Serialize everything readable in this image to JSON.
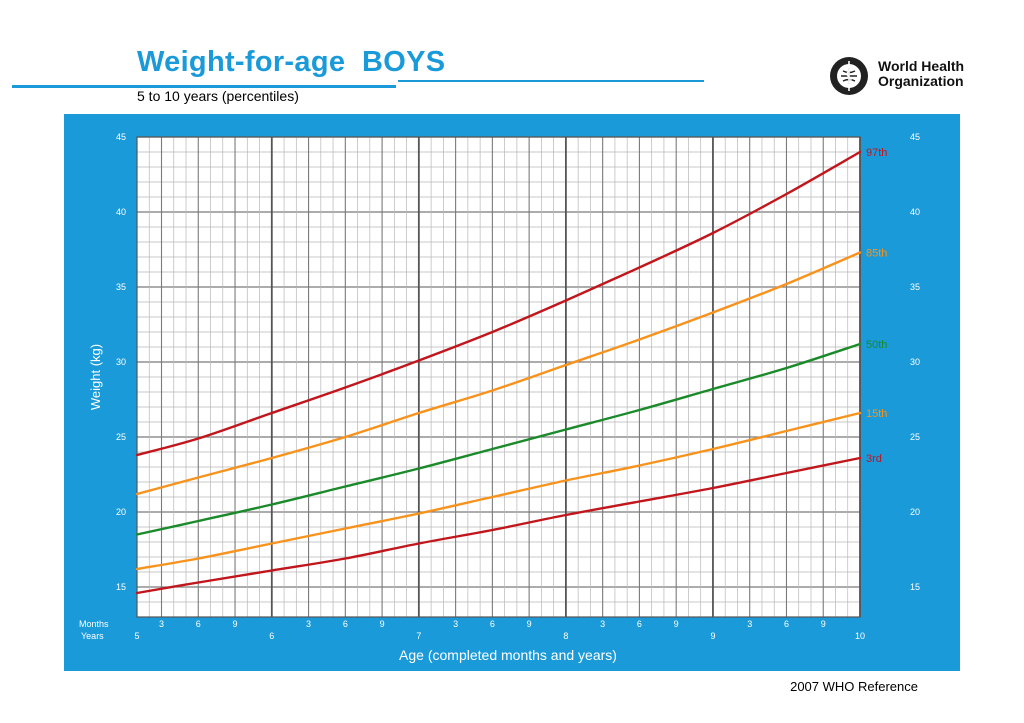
{
  "header": {
    "title": "Weight-for-age  BOYS",
    "subtitle": "5 to 10 years (percentiles)"
  },
  "org": {
    "line1": "World Health",
    "line2": "Organization",
    "logo_icon": "who-emblem-icon"
  },
  "footer": {
    "reference": "2007 WHO Reference"
  },
  "colors": {
    "panel_blue": "#1a9ad9",
    "red": "#c0161c",
    "orange": "#f7931d",
    "green": "#1b8a2b",
    "grid_dark": "#7a7a7a",
    "grid_light": "#b7b7b7"
  },
  "chart_data": {
    "type": "line",
    "title": "Weight-for-age BOYS",
    "subtitle": "5 to 10 years (percentiles)",
    "xlabel": "Age (completed months and years)",
    "ylabel": "Weight (kg)",
    "xlim": [
      61,
      120
    ],
    "ylim": [
      13,
      45
    ],
    "y_ticks": [
      15,
      20,
      25,
      30,
      35,
      40,
      45
    ],
    "month_row_label": "Months",
    "year_row_label": "Years",
    "month_ticks": [
      {
        "age": 63,
        "label": "3"
      },
      {
        "age": 66,
        "label": "6"
      },
      {
        "age": 69,
        "label": "9"
      },
      {
        "age": 75,
        "label": "3"
      },
      {
        "age": 78,
        "label": "6"
      },
      {
        "age": 81,
        "label": "9"
      },
      {
        "age": 87,
        "label": "3"
      },
      {
        "age": 90,
        "label": "6"
      },
      {
        "age": 93,
        "label": "9"
      },
      {
        "age": 99,
        "label": "3"
      },
      {
        "age": 102,
        "label": "6"
      },
      {
        "age": 105,
        "label": "9"
      },
      {
        "age": 111,
        "label": "3"
      },
      {
        "age": 114,
        "label": "6"
      },
      {
        "age": 117,
        "label": "9"
      }
    ],
    "year_ticks": [
      {
        "age": 61,
        "label": "5"
      },
      {
        "age": 72,
        "label": "6"
      },
      {
        "age": 84,
        "label": "7"
      },
      {
        "age": 96,
        "label": "8"
      },
      {
        "age": 108,
        "label": "9"
      },
      {
        "age": 120,
        "label": "10"
      }
    ],
    "x": [
      61,
      66,
      72,
      78,
      84,
      90,
      96,
      102,
      108,
      114,
      120
    ],
    "series": [
      {
        "name": "97th",
        "color": "red",
        "values": [
          23.8,
          24.9,
          26.6,
          28.3,
          30.1,
          32.0,
          34.1,
          36.3,
          38.6,
          41.2,
          44.0
        ]
      },
      {
        "name": "85th",
        "color": "orange",
        "values": [
          21.2,
          22.3,
          23.6,
          25.0,
          26.6,
          28.1,
          29.8,
          31.5,
          33.3,
          35.2,
          37.3
        ]
      },
      {
        "name": "50th",
        "color": "green",
        "values": [
          18.5,
          19.4,
          20.5,
          21.7,
          22.9,
          24.2,
          25.5,
          26.8,
          28.2,
          29.6,
          31.2
        ]
      },
      {
        "name": "15th",
        "color": "orange",
        "values": [
          16.2,
          16.9,
          17.9,
          18.9,
          19.9,
          21.0,
          22.1,
          23.1,
          24.2,
          25.4,
          26.6
        ]
      },
      {
        "name": "3rd",
        "color": "red",
        "values": [
          14.6,
          15.3,
          16.1,
          16.9,
          17.9,
          18.8,
          19.8,
          20.7,
          21.6,
          22.6,
          23.6
        ]
      }
    ]
  }
}
